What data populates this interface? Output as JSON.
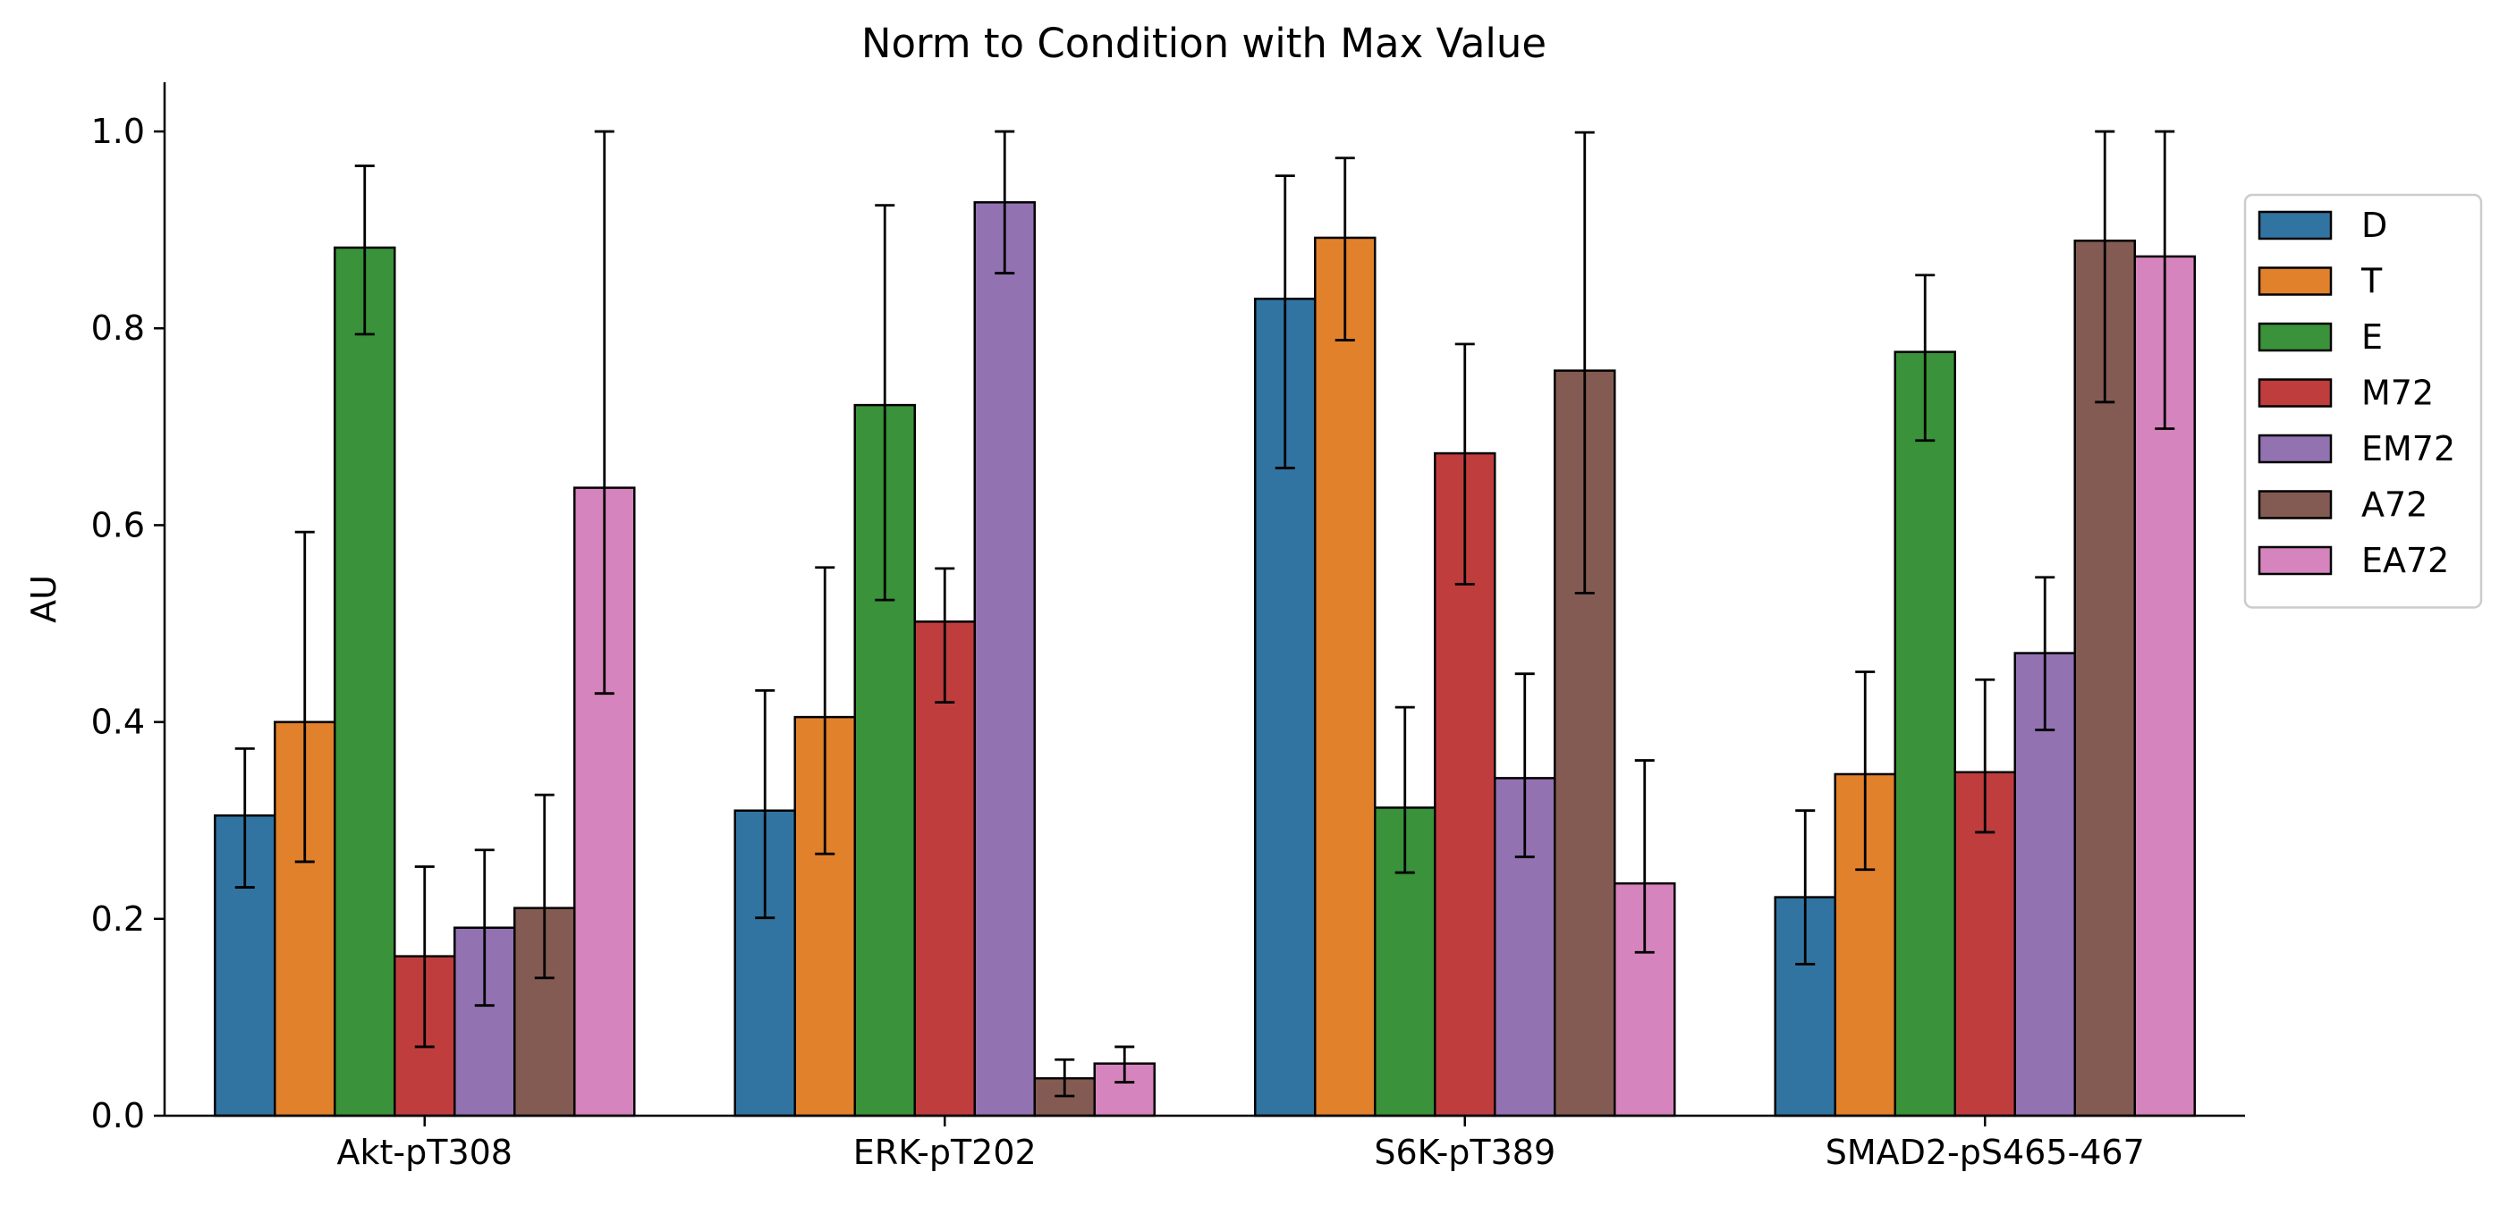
{
  "chart_data": {
    "type": "bar",
    "title": "Norm to Condition with Max Value",
    "xlabel": "",
    "ylabel": "AU",
    "ylim": [
      0,
      1.05
    ],
    "yticks": [
      "0.0",
      "0.2",
      "0.4",
      "0.6",
      "0.8",
      "1.0"
    ],
    "categories": [
      "Akt-pT308",
      "ERK-pT202",
      "S6K-pT389",
      "SMAD2-pS465-467"
    ],
    "legend_position": "right",
    "grid": false,
    "series": [
      {
        "name": "D",
        "color": "#3274a1",
        "values": [
          0.305,
          0.31,
          0.83,
          0.222
        ],
        "err_low": [
          0.232,
          0.201,
          0.658,
          0.154
        ],
        "err_high": [
          0.373,
          0.432,
          0.955,
          0.31
        ]
      },
      {
        "name": "T",
        "color": "#e1812c",
        "values": [
          0.4,
          0.405,
          0.892,
          0.347
        ],
        "err_low": [
          0.258,
          0.266,
          0.788,
          0.25
        ],
        "err_high": [
          0.593,
          0.557,
          0.973,
          0.451
        ]
      },
      {
        "name": "E",
        "color": "#3a923a",
        "values": [
          0.882,
          0.722,
          0.313,
          0.776
        ],
        "err_low": [
          0.794,
          0.524,
          0.247,
          0.686
        ],
        "err_high": [
          0.965,
          0.925,
          0.415,
          0.854
        ]
      },
      {
        "name": "M72",
        "color": "#c03d3e",
        "values": [
          0.162,
          0.502,
          0.673,
          0.349
        ],
        "err_low": [
          0.07,
          0.42,
          0.54,
          0.288
        ],
        "err_high": [
          0.253,
          0.556,
          0.784,
          0.443
        ]
      },
      {
        "name": "EM72",
        "color": "#9372b2",
        "values": [
          0.191,
          0.928,
          0.343,
          0.47
        ],
        "err_low": [
          0.112,
          0.856,
          0.263,
          0.392
        ],
        "err_high": [
          0.27,
          1.0,
          0.449,
          0.547
        ]
      },
      {
        "name": "A72",
        "color": "#845b53",
        "values": [
          0.211,
          0.038,
          0.757,
          0.889
        ],
        "err_low": [
          0.14,
          0.02,
          0.531,
          0.725
        ],
        "err_high": [
          0.326,
          0.057,
          0.999,
          1.0
        ]
      },
      {
        "name": "EA72",
        "color": "#d684bd",
        "values": [
          0.638,
          0.053,
          0.236,
          0.873
        ],
        "err_low": [
          0.429,
          0.034,
          0.166,
          0.698
        ],
        "err_high": [
          1.0,
          0.07,
          0.361,
          1.0
        ]
      }
    ]
  }
}
